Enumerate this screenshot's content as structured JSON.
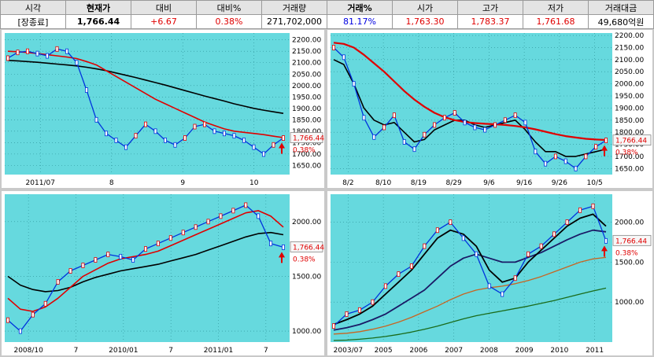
{
  "quote": {
    "headers": [
      "시각",
      "현재가",
      "대비",
      "대비%",
      "거래량",
      "거래%",
      "시가",
      "고가",
      "저가",
      "거래대금"
    ],
    "values": [
      "[장종료]",
      "1,766.44",
      "+6.67",
      "0.38%",
      "271,702,000",
      "81.17%",
      "1,763.30",
      "1,783.37",
      "1,761.68",
      "49,680억원"
    ]
  },
  "colors": {
    "plot_bg": "#66d9de",
    "black_ma": "#000000",
    "red_ma": "#e00000",
    "blue_price": "#0033dd",
    "navy_ma": "#1a1a66",
    "brown_ma": "#c86420",
    "green_ma": "#1a6b1a",
    "arrow": "#e00000"
  },
  "chart_data": [
    {
      "type": "line",
      "name": "top-left daily",
      "price_label": "1,766.44",
      "pct_label": "0.38%",
      "ylim": [
        1610,
        2230
      ],
      "yticks": [
        "2200.00",
        "2150.00",
        "2100.00",
        "2050.00",
        "2000.00",
        "1950.00",
        "1900.00",
        "1850.00",
        "1800.00",
        "1750.00",
        "1700.00",
        "1650.00"
      ],
      "xticks": [
        "2011/07",
        "8",
        "9",
        "10"
      ],
      "series": [
        {
          "values": [
            2120,
            2145,
            2150,
            2140,
            2130,
            2160,
            2150,
            2100,
            1980,
            1850,
            1790,
            1760,
            1730,
            1780,
            1830,
            1800,
            1760,
            1740,
            1770,
            1820,
            1830,
            1800,
            1790,
            1780,
            1760,
            1730,
            1700,
            1740,
            1770
          ]
        },
        {
          "values": [
            2150,
            2148,
            2145,
            2140,
            2135,
            2130,
            2125,
            2118,
            2105,
            2090,
            2065,
            2040,
            2015,
            1990,
            1965,
            1940,
            1920,
            1900,
            1880,
            1860,
            1840,
            1825,
            1810,
            1800,
            1795,
            1790,
            1785,
            1778,
            1772
          ]
        },
        {
          "values": [
            2110,
            2108,
            2105,
            2102,
            2098,
            2094,
            2090,
            2086,
            2080,
            2073,
            2065,
            2055,
            2045,
            2035,
            2024,
            2013,
            2002,
            1990,
            1978,
            1966,
            1954,
            1943,
            1932,
            1920,
            1910,
            1900,
            1892,
            1885,
            1878
          ]
        }
      ]
    },
    {
      "type": "line",
      "name": "top-right daily",
      "price_label": "1,766.44",
      "pct_label": "0.38%",
      "ylim": [
        1625,
        2210
      ],
      "yticks": [
        "2200.00",
        "2150.00",
        "2100.00",
        "2050.00",
        "2000.00",
        "1950.00",
        "1900.00",
        "1850.00",
        "1800.00",
        "1750.00",
        "1700.00",
        "1650.00"
      ],
      "xticks": [
        "8/2",
        "8/10",
        "8/19",
        "8/29",
        "9/6",
        "9/16",
        "9/26",
        "10/5"
      ],
      "series": [
        {
          "values": [
            2150,
            2110,
            2000,
            1860,
            1780,
            1820,
            1870,
            1760,
            1730,
            1790,
            1830,
            1860,
            1880,
            1840,
            1820,
            1810,
            1830,
            1850,
            1870,
            1840,
            1720,
            1670,
            1700,
            1680,
            1650,
            1700,
            1740,
            1766
          ]
        },
        {
          "values": [
            2170,
            2165,
            2150,
            2120,
            2085,
            2050,
            2010,
            1970,
            1935,
            1905,
            1880,
            1862,
            1850,
            1842,
            1838,
            1835,
            1833,
            1830,
            1826,
            1820,
            1812,
            1802,
            1792,
            1784,
            1778,
            1773,
            1770,
            1768
          ]
        },
        {
          "values": [
            2100,
            2080,
            2000,
            1900,
            1850,
            1830,
            1840,
            1800,
            1760,
            1770,
            1810,
            1830,
            1850,
            1850,
            1830,
            1820,
            1830,
            1840,
            1850,
            1810,
            1760,
            1720,
            1720,
            1700,
            1700,
            1710,
            1720,
            1730
          ]
        }
      ]
    },
    {
      "type": "line",
      "name": "bottom-left weekly",
      "price_label": "1,766.44",
      "pct_label": "0.38%",
      "ylim": [
        900,
        2250
      ],
      "yticks": [
        "2000.00",
        "1500.00",
        "1000.00"
      ],
      "xticks": [
        "2008/10",
        "7",
        "2010/01",
        "7",
        "2011/01",
        "7"
      ],
      "series": [
        {
          "values": [
            1100,
            1000,
            1150,
            1250,
            1450,
            1550,
            1600,
            1650,
            1700,
            1680,
            1650,
            1750,
            1800,
            1850,
            1900,
            1950,
            2000,
            2050,
            2100,
            2150,
            2050,
            1800,
            1766
          ]
        },
        {
          "values": [
            1300,
            1200,
            1180,
            1220,
            1300,
            1400,
            1500,
            1560,
            1620,
            1660,
            1680,
            1700,
            1730,
            1780,
            1830,
            1880,
            1930,
            1980,
            2030,
            2080,
            2100,
            2050,
            1950
          ]
        },
        {
          "values": [
            1500,
            1420,
            1380,
            1360,
            1370,
            1400,
            1450,
            1490,
            1520,
            1550,
            1570,
            1590,
            1610,
            1640,
            1670,
            1700,
            1740,
            1780,
            1820,
            1860,
            1890,
            1900,
            1880
          ]
        }
      ]
    },
    {
      "type": "line",
      "name": "bottom-right weekly long term",
      "price_label": "1,766.44",
      "pct_label": "0.38%",
      "ylim": [
        500,
        2350
      ],
      "yticks": [
        "2000.00",
        "1500.00",
        "1000.00"
      ],
      "xticks": [
        "2003/07",
        "2005",
        "2006",
        "2007",
        "2008",
        "2009",
        "2010",
        "2011"
      ],
      "series": [
        {
          "values": [
            700,
            850,
            900,
            1000,
            1200,
            1350,
            1450,
            1700,
            1900,
            2000,
            1800,
            1600,
            1200,
            1100,
            1300,
            1600,
            1700,
            1850,
            2000,
            2150,
            2200,
            1766
          ]
        },
        {
          "values": [
            720,
            780,
            850,
            950,
            1100,
            1250,
            1400,
            1600,
            1800,
            1900,
            1850,
            1700,
            1400,
            1250,
            1300,
            1500,
            1650,
            1800,
            1950,
            2050,
            2100,
            1950
          ]
        },
        {
          "values": [
            650,
            680,
            720,
            780,
            850,
            950,
            1050,
            1150,
            1300,
            1450,
            1550,
            1600,
            1550,
            1500,
            1500,
            1560,
            1620,
            1700,
            1780,
            1850,
            1900,
            1880
          ]
        },
        {
          "values": [
            600,
            610,
            630,
            660,
            700,
            750,
            810,
            880,
            950,
            1030,
            1100,
            1150,
            1180,
            1200,
            1230,
            1270,
            1320,
            1380,
            1440,
            1500,
            1540,
            1560
          ]
        },
        {
          "values": [
            520,
            525,
            535,
            550,
            570,
            595,
            625,
            660,
            700,
            745,
            790,
            830,
            860,
            890,
            920,
            950,
            985,
            1020,
            1060,
            1100,
            1140,
            1175
          ]
        }
      ]
    }
  ]
}
